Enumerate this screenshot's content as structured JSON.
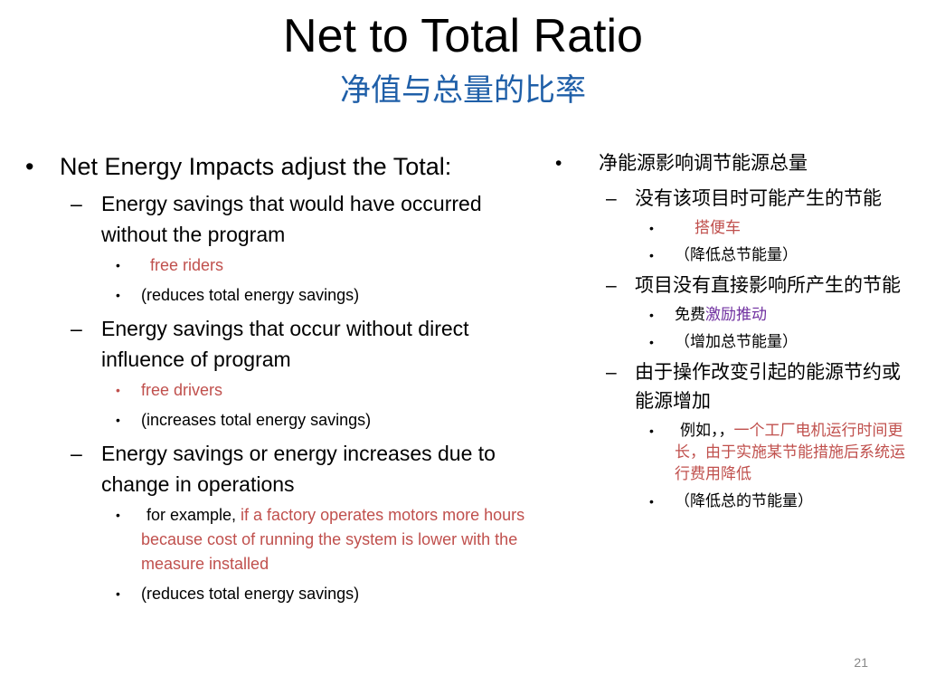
{
  "title": "Net to Total Ratio",
  "subtitle": "净值与总量的比率",
  "left": {
    "heading": "Net Energy Impacts adjust the Total:",
    "items": [
      {
        "text": "Energy savings that would have occurred without the program",
        "subs": [
          {
            "text": "free riders"
          },
          {
            "text": "(reduces total energy savings)"
          }
        ]
      },
      {
        "text": "Energy savings that occur without direct influence of program",
        "subs": [
          {
            "text": "free drivers"
          },
          {
            "text": "(increases total energy savings)"
          }
        ]
      },
      {
        "text": "Energy savings or energy increases due to change in operations",
        "subs": [
          {
            "prefix": "for example, ",
            "text": "if a factory operates motors more hours because cost of running the system is lower with the measure installed"
          },
          {
            "text": "(reduces total energy savings)"
          }
        ]
      }
    ]
  },
  "right": {
    "heading": "净能源影响调节能源总量",
    "items": [
      {
        "text": "没有该项目时可能产生的节能",
        "subs": [
          {
            "text": "搭便车"
          },
          {
            "text": "（降低总节能量）"
          }
        ]
      },
      {
        "text": "项目没有直接影响所产生的节能",
        "subs": [
          {
            "prefix": "免费",
            "text": "激励推动"
          },
          {
            "text": "（增加总节能量）"
          }
        ]
      },
      {
        "text": "由于操作改变引起的能源节约或能源增加",
        "subs": [
          {
            "prefix": "例如，，",
            "text": "一个工厂电机运行时间更长，由于实施某节能措施后系统运行费用降低"
          },
          {
            "text": "（降低总的节能量）"
          }
        ]
      }
    ]
  },
  "page_number": "21",
  "colors": {
    "subtitle": "#1f5fa8",
    "highlight_red": "#c0504d",
    "highlight_purple": "#7030a0"
  }
}
